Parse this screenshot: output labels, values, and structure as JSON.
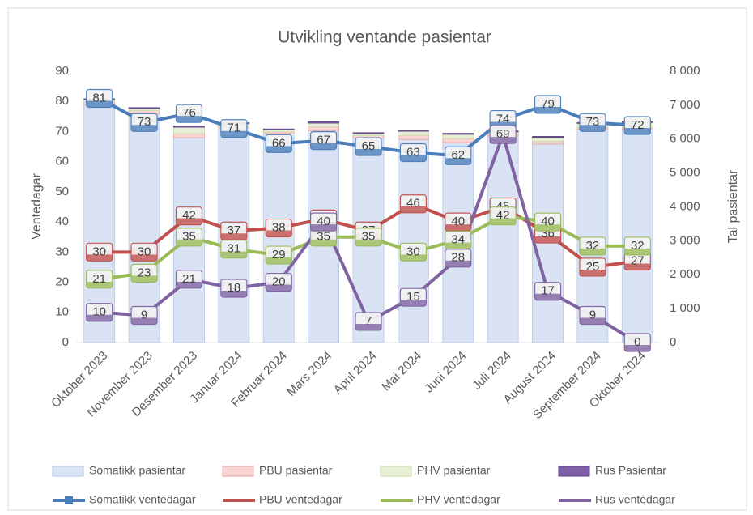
{
  "chart_data": {
    "type": "combo",
    "title": "Utvikling ventande pasientar",
    "ylabel": "Ventedagar",
    "y2label": "Tal pasientar",
    "categories": [
      "Oktober 2023",
      "November 2023",
      "Desember 2023",
      "Januar 2024",
      "Februar 2024",
      "Mars 2024",
      "April 2024",
      "Mai 2024",
      "Juni 2024",
      "Juli 2024",
      "August 2024",
      "September 2024",
      "Oktober 2024"
    ],
    "ylim": [
      0,
      90
    ],
    "yticks": [
      0,
      10,
      20,
      30,
      40,
      50,
      60,
      70,
      80,
      90
    ],
    "y2lim": [
      0,
      8000
    ],
    "y2ticks": [
      0,
      {
        "value": 1000,
        "label": "1 000"
      },
      {
        "value": 2000,
        "label": "2 000"
      },
      {
        "value": 3000,
        "label": "3 000"
      },
      {
        "value": 4000,
        "label": "4 000"
      },
      {
        "value": 5000,
        "label": "5 000"
      },
      {
        "value": 6000,
        "label": "6 000"
      },
      {
        "value": 7000,
        "label": "7 000"
      },
      {
        "value": 8000,
        "label": "8 000"
      }
    ],
    "series": [
      {
        "name": "Somatikk pasientar",
        "type": "bar",
        "axis": "y2",
        "color": "#dae3f3",
        "values": [
          7000,
          6760,
          6040,
          6330,
          6160,
          6250,
          6040,
          5990,
          5900,
          6090,
          5850,
          6280,
          6300
        ]
      },
      {
        "name": "PBU pasientar",
        "type": "bar",
        "axis": "y2",
        "color": "#f8d4d2",
        "values": [
          100,
          80,
          120,
          60,
          50,
          120,
          60,
          120,
          120,
          60,
          80,
          60,
          40
        ]
      },
      {
        "name": "PHV pasientar",
        "type": "bar",
        "axis": "y2",
        "color": "#e6efd6",
        "values": [
          60,
          60,
          190,
          60,
          60,
          100,
          60,
          120,
          120,
          60,
          120,
          120,
          150
        ]
      },
      {
        "name": "Rus Pasientar",
        "type": "bar",
        "axis": "y2",
        "color": "#7f5ea8",
        "values": [
          30,
          30,
          40,
          30,
          30,
          40,
          30,
          30,
          30,
          30,
          30,
          30,
          30
        ]
      },
      {
        "name": "Somatikk ventedagar",
        "type": "line",
        "color": "#4a7ebb",
        "values": [
          81,
          73,
          76,
          71,
          66,
          67,
          65,
          63,
          62,
          74,
          79,
          73,
          72
        ]
      },
      {
        "name": "PBU ventedagar",
        "type": "line",
        "color": "#c0504d",
        "values": [
          30,
          30,
          42,
          37,
          38,
          41,
          37,
          46,
          40,
          45,
          36,
          25,
          27
        ]
      },
      {
        "name": "PHV ventedagar",
        "type": "line",
        "color": "#9bbb59",
        "values": [
          21,
          23,
          35,
          31,
          29,
          35,
          35,
          30,
          34,
          42,
          40,
          32,
          32
        ]
      },
      {
        "name": "Rus ventedagar",
        "type": "line",
        "color": "#8064a2",
        "values": [
          10,
          9,
          21,
          18,
          20,
          40,
          7,
          15,
          28,
          69,
          17,
          9,
          0
        ]
      }
    ]
  }
}
